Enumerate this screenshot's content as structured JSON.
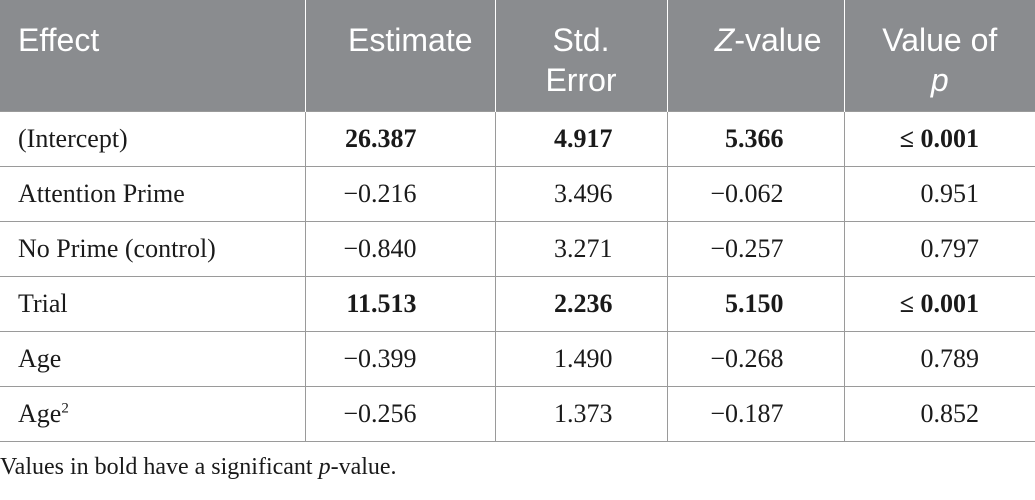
{
  "header": {
    "effect": "Effect",
    "estimate": "Estimate",
    "std_error_line1": "Std.",
    "std_error_line2": "Error",
    "z_italic": "Z",
    "z_rest": "-value",
    "p_line1": "Value of",
    "p_italic": "p"
  },
  "rows": [
    {
      "effect": "(Intercept)",
      "estimate": "26.387",
      "std_error": "4.917",
      "z": "5.366",
      "p": "≤ 0.001",
      "significant": true
    },
    {
      "effect": "Attention Prime",
      "estimate": "−0.216",
      "std_error": "3.496",
      "z": "−0.062",
      "p": "0.951",
      "significant": false
    },
    {
      "effect": "No Prime (control)",
      "estimate": "−0.840",
      "std_error": "3.271",
      "z": "−0.257",
      "p": "0.797",
      "significant": false
    },
    {
      "effect": "Trial",
      "estimate": "11.513",
      "std_error": "2.236",
      "z": "5.150",
      "p": "≤ 0.001",
      "significant": true
    },
    {
      "effect": "Age",
      "estimate": "−0.399",
      "std_error": "1.490",
      "z": "−0.268",
      "p": "0.789",
      "significant": false
    },
    {
      "effect": "Age",
      "effect_sup": "2",
      "estimate": "−0.256",
      "std_error": "1.373",
      "z": "−0.187",
      "p": "0.852",
      "significant": false
    }
  ],
  "footnote": {
    "before": "Values in bold have a significant ",
    "italic": "p",
    "after": "-value."
  },
  "colors": {
    "header_bg": "#8a8c8f",
    "header_text": "#ffffff",
    "rule": "#9a9a9a"
  }
}
